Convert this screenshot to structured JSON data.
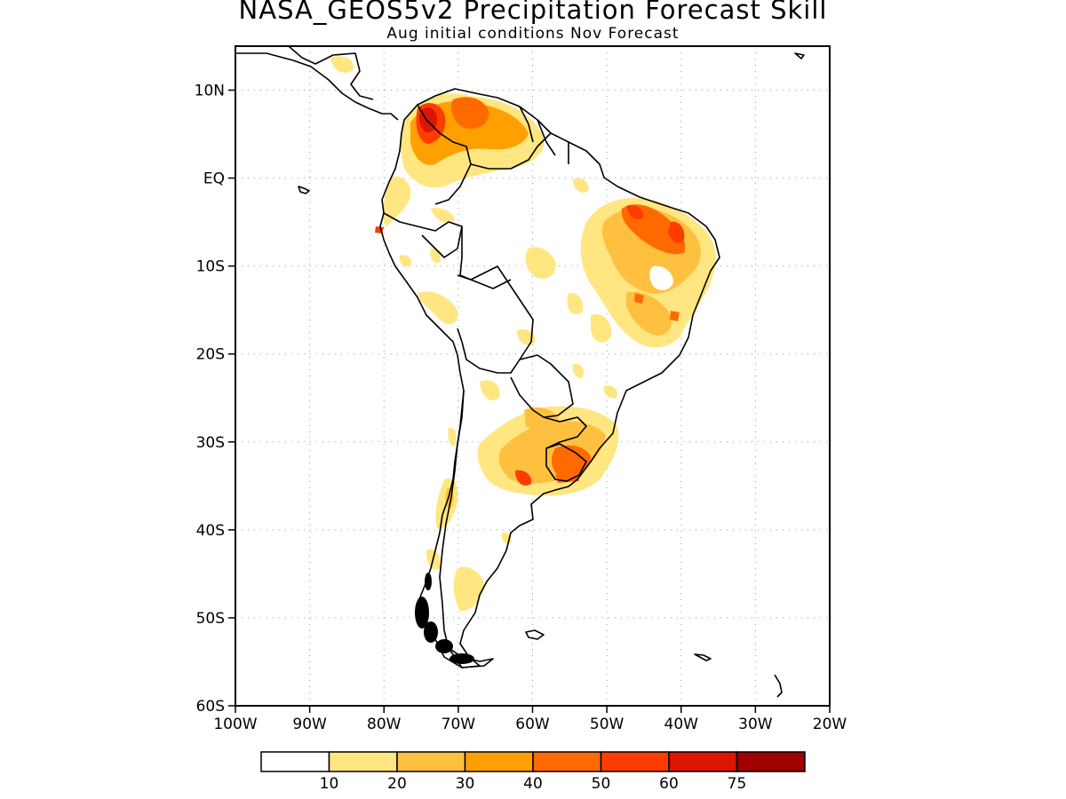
{
  "title": "NASA_GEOS5v2 Precipitation Forecast Skill",
  "subtitle": "Aug initial conditions  Nov Forecast",
  "map": {
    "region": "South America",
    "lon_range": [
      -100,
      -20
    ],
    "lat_range": [
      -60,
      15
    ],
    "x_ticks": [
      "100W",
      "90W",
      "80W",
      "70W",
      "60W",
      "50W",
      "40W",
      "30W",
      "20W"
    ],
    "y_ticks": [
      "10N",
      "EQ",
      "10S",
      "20S",
      "30S",
      "40S",
      "50S",
      "60S"
    ],
    "grid": "dotted"
  },
  "colorbar": {
    "labels": [
      "10",
      "20",
      "30",
      "40",
      "50",
      "60",
      "75"
    ],
    "colors": [
      "#ffffff",
      "#ffe680",
      "#ffc040",
      "#ffa000",
      "#ff6a00",
      "#ff3c00",
      "#dc1400",
      "#a00000"
    ]
  }
}
